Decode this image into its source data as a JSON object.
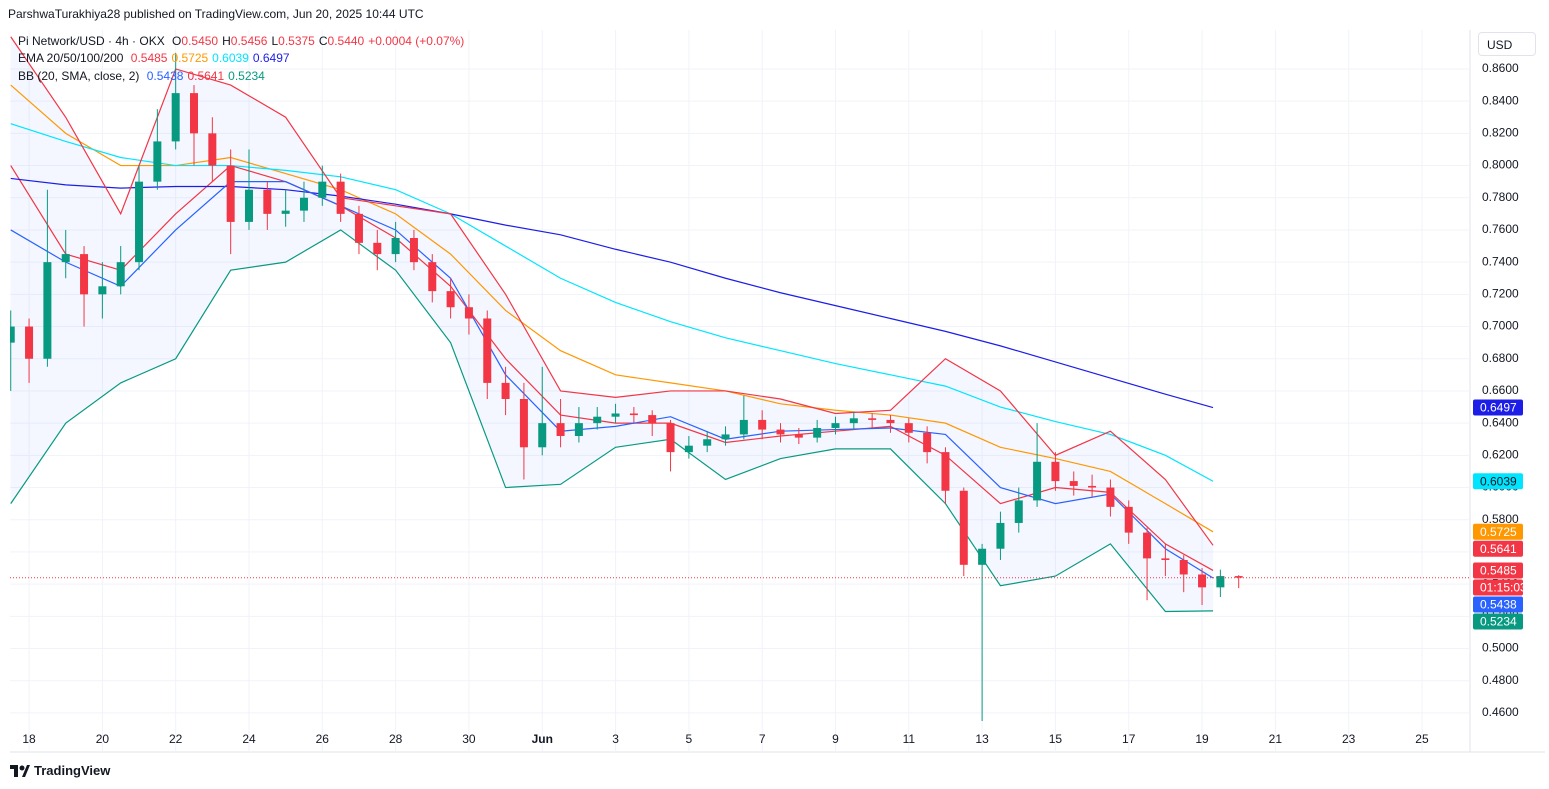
{
  "header": {
    "published": "ParshwaTurakhiya28 published on TradingView.com, Jun 20, 2025 10:44 UTC",
    "currency": "USD",
    "brand": "TradingView"
  },
  "chart_data": {
    "type": "candlestick",
    "legend": {
      "symbol": "Pi Network/USD · 4h · OKX",
      "ohlc_readout": [
        {
          "label": "O",
          "value": "0.5450"
        },
        {
          "label": "H",
          "value": "0.5456"
        },
        {
          "label": "L",
          "value": "0.5375"
        },
        {
          "label": "C",
          "value": "0.5440"
        }
      ],
      "change": "+0.0004 (+0.07%)"
    },
    "countdown": "01:15:03",
    "up_color": "#089981",
    "down_color": "#f23645",
    "grid": true,
    "xlim": [
      17.48,
      57.31
    ],
    "xticks": [
      18,
      20,
      22,
      24,
      26,
      28,
      30,
      {
        "value": 32,
        "label": "Jun"
      },
      {
        "value": 34,
        "label": "3"
      },
      {
        "value": 36,
        "label": "5"
      },
      {
        "value": 38,
        "label": "7"
      },
      {
        "value": 40,
        "label": "9"
      },
      {
        "value": 42,
        "label": "11"
      },
      {
        "value": 44,
        "label": "13"
      },
      {
        "value": 46,
        "label": "15"
      },
      {
        "value": 48,
        "label": "17"
      },
      {
        "value": 50,
        "label": "19"
      },
      {
        "value": 52,
        "label": "21"
      },
      {
        "value": 54,
        "label": "23"
      },
      {
        "value": 56,
        "label": "25"
      }
    ],
    "ylim": [
      0.4525,
      0.8842
    ],
    "yticks": [
      {
        "value": 0.46,
        "label": "0.4600"
      },
      {
        "value": 0.48,
        "label": "0.4800"
      },
      {
        "value": 0.5,
        "label": "0.5000"
      },
      {
        "value": 0.52,
        "label": "0.5200"
      },
      {
        "value": 0.54,
        "label": "0.5400"
      },
      {
        "value": 0.56,
        "label": "0.5600"
      },
      {
        "value": 0.58,
        "label": "0.5800"
      },
      {
        "value": 0.6,
        "label": "0.6000"
      },
      {
        "value": 0.62,
        "label": "0.6200"
      },
      {
        "value": 0.64,
        "label": "0.6400"
      },
      {
        "value": 0.66,
        "label": "0.6600"
      },
      {
        "value": 0.68,
        "label": "0.6800"
      },
      {
        "value": 0.7,
        "label": "0.7000"
      },
      {
        "value": 0.72,
        "label": "0.7200"
      },
      {
        "value": 0.74,
        "label": "0.7400"
      },
      {
        "value": 0.76,
        "label": "0.7600"
      },
      {
        "value": 0.78,
        "label": "0.7800"
      },
      {
        "value": 0.8,
        "label": "0.8000"
      },
      {
        "value": 0.82,
        "label": "0.8200"
      },
      {
        "value": 0.84,
        "label": "0.8400"
      },
      {
        "value": 0.86,
        "label": "0.8600"
      }
    ],
    "x": [
      17.5,
      18,
      18.5,
      19,
      19.5,
      20,
      20.5,
      21,
      21.5,
      22,
      22.5,
      23,
      23.5,
      24,
      24.5,
      25,
      25.5,
      26,
      26.5,
      27,
      27.5,
      28,
      28.5,
      29,
      29.5,
      30,
      30.5,
      31,
      31.5,
      32,
      32.5,
      33,
      33.5,
      34,
      34.5,
      35,
      35.5,
      36,
      36.5,
      37,
      37.5,
      38,
      38.5,
      39,
      39.5,
      40,
      40.5,
      41,
      41.5,
      42,
      42.5,
      43,
      43.5,
      44,
      44.5,
      45,
      45.5,
      46,
      46.5,
      47,
      47.5,
      48,
      48.5,
      49,
      49.5,
      50,
      50.5,
      51
    ],
    "open": [
      0.69,
      0.7,
      0.68,
      0.74,
      0.745,
      0.72,
      0.725,
      0.74,
      0.79,
      0.815,
      0.845,
      0.82,
      0.8,
      0.765,
      0.785,
      0.77,
      0.772,
      0.78,
      0.79,
      0.77,
      0.752,
      0.745,
      0.755,
      0.74,
      0.722,
      0.712,
      0.705,
      0.665,
      0.655,
      0.625,
      0.64,
      0.632,
      0.64,
      0.644,
      0.646,
      0.645,
      0.64,
      0.622,
      0.626,
      0.63,
      0.633,
      0.642,
      0.636,
      0.633,
      0.631,
      0.637,
      0.64,
      0.643,
      0.642,
      0.64,
      0.634,
      0.622,
      0.598,
      0.552,
      0.562,
      0.578,
      0.592,
      0.616,
      0.604,
      0.601,
      0.6,
      0.588,
      0.572,
      0.556,
      0.555,
      0.546,
      0.538,
      0.545
    ],
    "high": [
      0.71,
      0.705,
      0.785,
      0.76,
      0.75,
      0.74,
      0.75,
      0.8,
      0.835,
      0.87,
      0.85,
      0.83,
      0.81,
      0.81,
      0.79,
      0.785,
      0.79,
      0.8,
      0.795,
      0.775,
      0.76,
      0.765,
      0.76,
      0.745,
      0.73,
      0.72,
      0.71,
      0.675,
      0.665,
      0.675,
      0.655,
      0.65,
      0.65,
      0.652,
      0.65,
      0.648,
      0.642,
      0.632,
      0.635,
      0.638,
      0.657,
      0.648,
      0.64,
      0.637,
      0.642,
      0.644,
      0.647,
      0.646,
      0.645,
      0.643,
      0.638,
      0.625,
      0.6,
      0.565,
      0.585,
      0.6,
      0.64,
      0.622,
      0.61,
      0.608,
      0.605,
      0.592,
      0.575,
      0.565,
      0.558,
      0.55,
      0.549,
      0.5456
    ],
    "low": [
      0.66,
      0.665,
      0.675,
      0.73,
      0.7,
      0.705,
      0.72,
      0.735,
      0.785,
      0.81,
      0.8,
      0.79,
      0.745,
      0.76,
      0.76,
      0.762,
      0.765,
      0.775,
      0.765,
      0.745,
      0.735,
      0.74,
      0.735,
      0.715,
      0.705,
      0.695,
      0.655,
      0.645,
      0.605,
      0.62,
      0.625,
      0.628,
      0.636,
      0.64,
      0.64,
      0.632,
      0.61,
      0.618,
      0.622,
      0.626,
      0.63,
      0.63,
      0.628,
      0.627,
      0.628,
      0.633,
      0.636,
      0.637,
      0.634,
      0.628,
      0.615,
      0.59,
      0.545,
      0.455,
      0.555,
      0.572,
      0.588,
      0.598,
      0.595,
      0.594,
      0.582,
      0.565,
      0.53,
      0.545,
      0.535,
      0.527,
      0.532,
      0.5375
    ],
    "close": [
      0.7,
      0.68,
      0.74,
      0.745,
      0.72,
      0.725,
      0.74,
      0.79,
      0.815,
      0.845,
      0.82,
      0.8,
      0.765,
      0.785,
      0.77,
      0.772,
      0.78,
      0.79,
      0.77,
      0.752,
      0.745,
      0.755,
      0.74,
      0.722,
      0.712,
      0.705,
      0.665,
      0.655,
      0.625,
      0.64,
      0.632,
      0.64,
      0.644,
      0.646,
      0.645,
      0.64,
      0.622,
      0.626,
      0.63,
      0.633,
      0.642,
      0.636,
      0.633,
      0.631,
      0.637,
      0.64,
      0.643,
      0.642,
      0.64,
      0.634,
      0.622,
      0.598,
      0.552,
      0.562,
      0.578,
      0.592,
      0.616,
      0.604,
      0.601,
      0.6,
      0.588,
      0.572,
      0.556,
      0.555,
      0.546,
      0.538,
      0.545,
      0.544
    ],
    "line_x": [
      17.5,
      19,
      20.5,
      22,
      23.5,
      25,
      26.5,
      28,
      29.5,
      31,
      32.5,
      34,
      35.5,
      37,
      38.5,
      40,
      41.5,
      43,
      44.5,
      46,
      47.5,
      49,
      50.3
    ],
    "ema": {
      "label": "EMA 20/50/100/200",
      "series": [
        {
          "color": "#f23645",
          "values": [
            0.8,
            0.745,
            0.735,
            0.77,
            0.8,
            0.79,
            0.775,
            0.755,
            0.725,
            0.68,
            0.645,
            0.64,
            0.64,
            0.628,
            0.632,
            0.635,
            0.638,
            0.62,
            0.59,
            0.6,
            0.597,
            0.565,
            0.5485
          ]
        },
        {
          "color": "#ff9800",
          "values": [
            0.85,
            0.82,
            0.8,
            0.8,
            0.805,
            0.795,
            0.785,
            0.77,
            0.745,
            0.71,
            0.685,
            0.67,
            0.665,
            0.66,
            0.652,
            0.648,
            0.645,
            0.64,
            0.625,
            0.618,
            0.61,
            0.59,
            0.5725
          ]
        },
        {
          "color": "#00e5ff",
          "values": [
            0.826,
            0.815,
            0.805,
            0.8,
            0.8,
            0.797,
            0.793,
            0.785,
            0.77,
            0.75,
            0.73,
            0.715,
            0.703,
            0.693,
            0.685,
            0.677,
            0.67,
            0.663,
            0.65,
            0.641,
            0.633,
            0.62,
            0.6039
          ]
        },
        {
          "color": "#1c1ee8",
          "values": [
            0.792,
            0.788,
            0.786,
            0.787,
            0.787,
            0.785,
            0.781,
            0.776,
            0.77,
            0.763,
            0.757,
            0.748,
            0.74,
            0.73,
            0.721,
            0.713,
            0.705,
            0.697,
            0.688,
            0.678,
            0.668,
            0.658,
            0.6497
          ]
        }
      ]
    },
    "bb": {
      "label": "BB (20, SMA, close, 2)",
      "fill": "#2962ff",
      "series": [
        {
          "color": "#2962ff",
          "values": [
            0.76,
            0.74,
            0.725,
            0.76,
            0.79,
            0.79,
            0.775,
            0.76,
            0.73,
            0.67,
            0.635,
            0.638,
            0.644,
            0.63,
            0.635,
            0.636,
            0.637,
            0.633,
            0.6,
            0.59,
            0.596,
            0.562,
            0.5438
          ]
        },
        {
          "color": "#f23645",
          "values": [
            0.88,
            0.83,
            0.77,
            0.86,
            0.85,
            0.83,
            0.78,
            0.775,
            0.77,
            0.72,
            0.66,
            0.656,
            0.66,
            0.66,
            0.655,
            0.646,
            0.648,
            0.68,
            0.66,
            0.62,
            0.635,
            0.605,
            0.5641
          ]
        },
        {
          "color": "#089981",
          "values": [
            0.59,
            0.64,
            0.665,
            0.68,
            0.735,
            0.74,
            0.76,
            0.735,
            0.69,
            0.6,
            0.602,
            0.625,
            0.63,
            0.605,
            0.618,
            0.624,
            0.624,
            0.59,
            0.539,
            0.545,
            0.565,
            0.523,
            0.5234
          ]
        }
      ]
    }
  }
}
